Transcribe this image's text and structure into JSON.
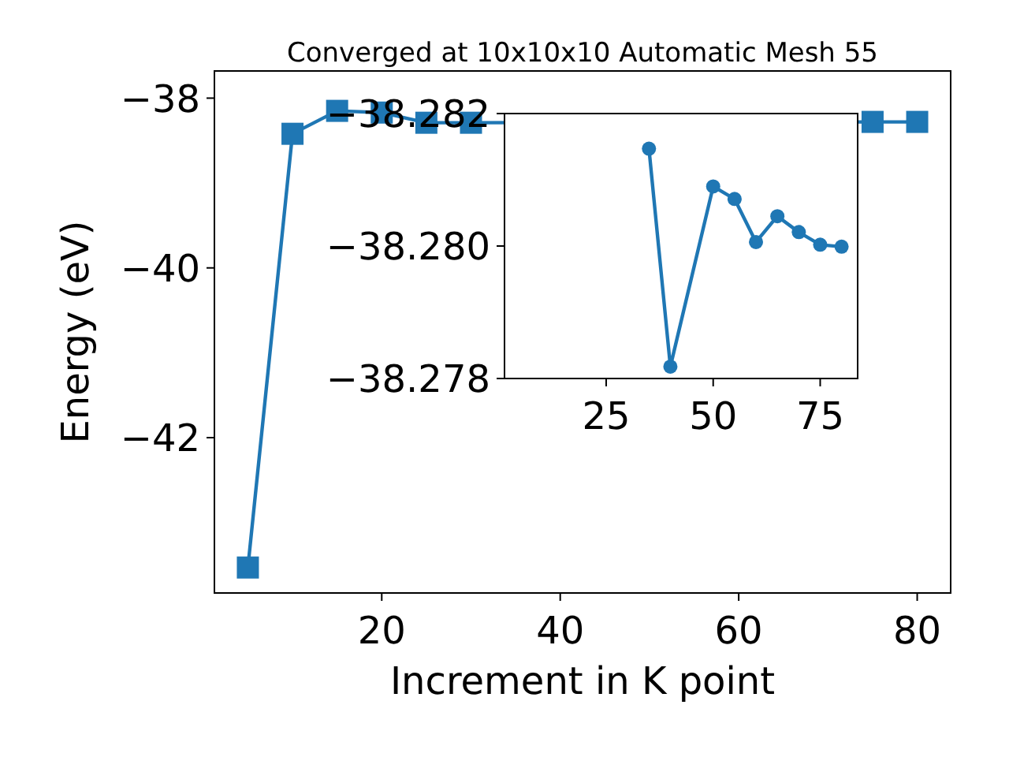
{
  "chart_data": [
    {
      "type": "line",
      "title": "Converged at 10x10x10 Automatic Mesh 55",
      "xlabel": "Increment in K point",
      "ylabel": "Energy (eV)",
      "marker": "square",
      "grid": false,
      "xlim": [
        1.25,
        83.75
      ],
      "ylim": [
        -43.83,
        -37.68
      ],
      "xticks": [
        20,
        40,
        60,
        80
      ],
      "yticks": [
        {
          "value": -42,
          "label": "−42"
        },
        {
          "value": -40,
          "label": "−40"
        },
        {
          "value": -38,
          "label": "−38"
        }
      ],
      "series": [
        {
          "color": "#1f77b4",
          "x": [
            5,
            10,
            15,
            20,
            25,
            30,
            35,
            40,
            50,
            55,
            60,
            65,
            70,
            75,
            80
          ],
          "values": [
            -43.53,
            -38.42,
            -38.15,
            -38.17,
            -38.29,
            -38.29,
            null,
            null,
            null,
            null,
            null,
            null,
            null,
            -38.28,
            -38.28
          ]
        }
      ]
    },
    {
      "type": "line",
      "marker": "circle",
      "grid": false,
      "xlim": [
        1.25,
        83.75
      ],
      "ylim": [
        -38.278,
        -38.282
      ],
      "xticks": [
        25,
        50,
        75
      ],
      "yticks": [
        {
          "value": -38.282,
          "label": "−38.282"
        },
        {
          "value": -38.28,
          "label": "−38.280"
        },
        {
          "value": -38.278,
          "label": "−38.278"
        }
      ],
      "series": [
        {
          "color": "#1f77b4",
          "x": [
            35,
            40,
            50,
            55,
            60,
            65,
            70,
            75,
            80
          ],
          "values": [
            -38.28147,
            -38.27818,
            -38.2809,
            -38.28071,
            -38.28006,
            -38.28045,
            -38.28021,
            -38.28002,
            -38.27999
          ]
        }
      ]
    }
  ]
}
